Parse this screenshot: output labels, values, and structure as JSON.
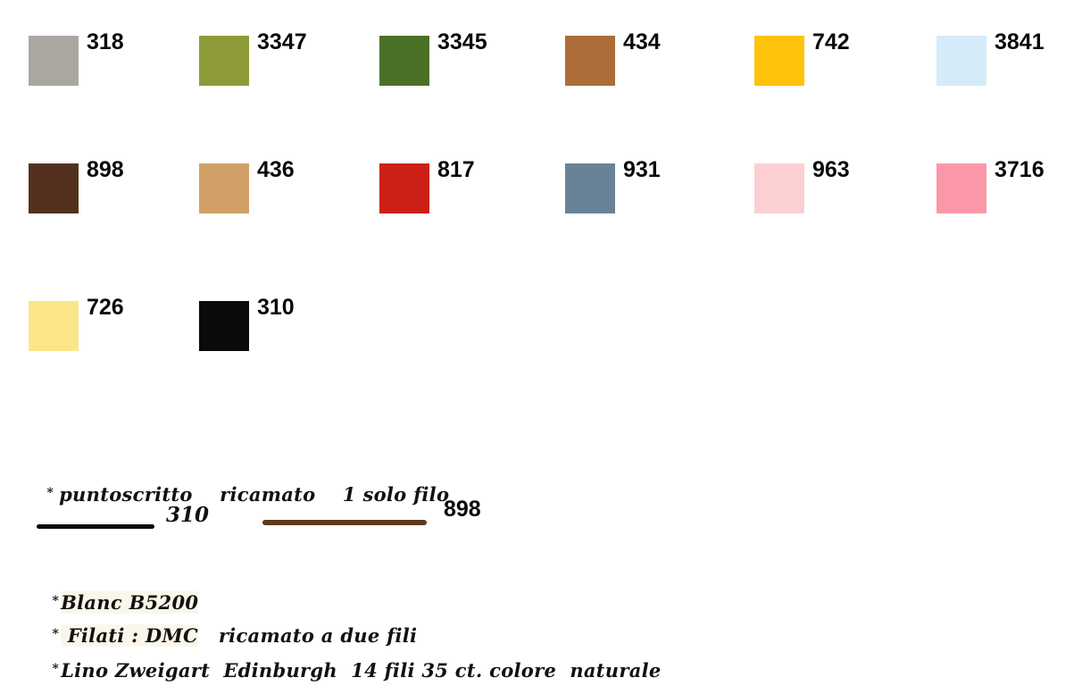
{
  "page": {
    "background": "#ffffff"
  },
  "palette": {
    "swatches": [
      {
        "code": "318",
        "color": "#A9A79F",
        "row": 0,
        "col": 0
      },
      {
        "code": "3347",
        "color": "#8F9B39",
        "row": 0,
        "col": 1
      },
      {
        "code": "3345",
        "color": "#4A7027",
        "row": 0,
        "col": 2
      },
      {
        "code": "434",
        "color": "#AC6D39",
        "row": 0,
        "col": 3
      },
      {
        "code": "742",
        "color": "#FFC20A",
        "row": 0,
        "col": 4
      },
      {
        "code": "3841",
        "color": "#D5EBF9",
        "row": 0,
        "col": 5
      },
      {
        "code": "898",
        "color": "#53311E",
        "row": 1,
        "col": 0
      },
      {
        "code": "436",
        "color": "#D1A066",
        "row": 1,
        "col": 1
      },
      {
        "code": "817",
        "color": "#CD2016",
        "row": 1,
        "col": 2
      },
      {
        "code": "931",
        "color": "#6A8297",
        "row": 1,
        "col": 3
      },
      {
        "code": "963",
        "color": "#FCD0D3",
        "row": 1,
        "col": 4
      },
      {
        "code": "3716",
        "color": "#FA98AA",
        "row": 1,
        "col": 5
      },
      {
        "code": "726",
        "color": "#FCE588",
        "row": 2,
        "col": 0
      },
      {
        "code": "310",
        "color": "#0A0A0A",
        "row": 2,
        "col": 1
      }
    ]
  },
  "stitch_note": {
    "marker": "*",
    "text": "puntoscritto    ricamato    1 solo filo"
  },
  "stitch_lines": [
    {
      "code": "310",
      "color": "#0A0A0A"
    },
    {
      "code": "898",
      "color": "#5C3A1E"
    }
  ],
  "footnotes": [
    {
      "marker": "*",
      "highlight": "Blanc B5200",
      "rest": ""
    },
    {
      "marker": "*",
      "highlight": " Filati : DMC",
      "rest": "   ricamato a due fili"
    },
    {
      "marker": "*",
      "highlight": "",
      "rest": "Lino Zweigart  Edinburgh  14 fili 35 ct. colore  naturale"
    }
  ]
}
